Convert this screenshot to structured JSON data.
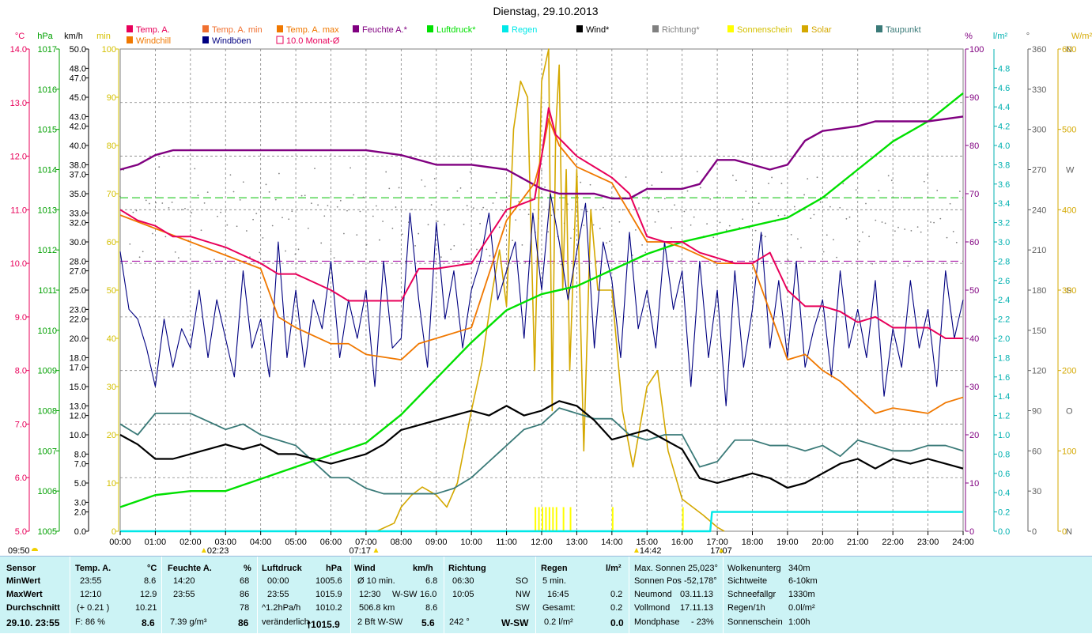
{
  "title": "Dienstag, 29.10.2013",
  "legend": [
    {
      "label": "Temp. A.",
      "color": "#e8005a",
      "marker": "fill"
    },
    {
      "label": "Temp. A. min",
      "color": "#f07030",
      "marker": "fill"
    },
    {
      "label": "Temp. A. max",
      "color": "#f07800",
      "marker": "fill"
    },
    {
      "label": "Feuchte A.*",
      "color": "#800080",
      "marker": "fill"
    },
    {
      "label": "Luftdruck*",
      "color": "#00e000",
      "marker": "fill"
    },
    {
      "label": "Regen",
      "color": "#00e8e8",
      "marker": "fill"
    },
    {
      "label": "Wind*",
      "color": "#000000",
      "marker": "fill"
    },
    {
      "label": "Richtung*",
      "color": "#808080",
      "marker": "fill"
    },
    {
      "label": "Sonnenschein",
      "color": "#ffff00",
      "marker": "fill"
    },
    {
      "label": "Solar",
      "color": "#d4a800",
      "marker": "fill"
    },
    {
      "label": "Taupunkt",
      "color": "#3a7a78",
      "marker": "fill"
    },
    {
      "label": "Windchill",
      "color": "#f07800",
      "marker": "fill"
    },
    {
      "label": "Windböen",
      "color": "#000080",
      "marker": "fill"
    },
    {
      "label": "10.0 Monat-Ø",
      "color": "#e8005a",
      "marker": "outline"
    }
  ],
  "axes": {
    "temp": {
      "unit": "°C",
      "color": "#e8005a",
      "ticks": [
        "5.0",
        "6.0",
        "7.0",
        "8.0",
        "9.0",
        "10.0",
        "11.0",
        "12.0",
        "13.0",
        "14.0"
      ]
    },
    "pressure": {
      "unit": "hPa",
      "color": "#00a000",
      "ticks": [
        "1005",
        "1006",
        "1007",
        "1008",
        "1009",
        "1010",
        "1011",
        "1012",
        "1013",
        "1014",
        "1015",
        "1016",
        "1017"
      ]
    },
    "wind": {
      "unit": "km/h",
      "color": "#000000",
      "ticks": [
        "0.0",
        "2.0",
        "3.0",
        "5.0",
        "7.0",
        "8.0",
        "10.0",
        "12.0",
        "13.0",
        "15.0",
        "17.0",
        "18.0",
        "20.0",
        "22.0",
        "23.0",
        "25.0",
        "27.0",
        "28.0",
        "30.0",
        "32.0",
        "33.0",
        "35.0",
        "37.0",
        "38.0",
        "40.0",
        "42.0",
        "43.0",
        "45.0",
        "47.0",
        "48.0",
        "50.0"
      ]
    },
    "sun_min": {
      "unit": "min",
      "color": "#d4c000",
      "ticks": [
        "0",
        "10",
        "20",
        "30",
        "40",
        "50",
        "60",
        "70",
        "80",
        "90",
        "100"
      ]
    },
    "humidity": {
      "unit": "%",
      "color": "#800080",
      "ticks": [
        "0",
        "10",
        "20",
        "30",
        "40",
        "50",
        "60",
        "70",
        "80",
        "90",
        "100"
      ]
    },
    "rain": {
      "unit": "l/m²",
      "color": "#00b0b0",
      "ticks": [
        "0.0",
        "0.2",
        "0.4",
        "0.6",
        "0.8",
        "1.0",
        "1.2",
        "1.4",
        "1.6",
        "1.8",
        "2.0",
        "2.2",
        "2.4",
        "2.6",
        "2.8",
        "3.0",
        "3.2",
        "3.4",
        "3.6",
        "3.8",
        "4.0",
        "4.2",
        "4.4",
        "4.6",
        "4.8"
      ]
    },
    "direction": {
      "unit": "°",
      "color": "#606060",
      "ticks": [
        "0",
        "30",
        "60",
        "90",
        "120",
        "150",
        "180",
        "210",
        "240",
        "270",
        "300",
        "330",
        "360"
      ],
      "compass": {
        "0": "N",
        "90": "O",
        "180": "S",
        "270": "W",
        "360": "N"
      }
    },
    "solar": {
      "unit": "W/m²",
      "color": "#d4a800",
      "ticks": [
        "0",
        "100",
        "200",
        "300",
        "400",
        "500",
        "600"
      ]
    },
    "time": [
      "00:00",
      "01:00",
      "02:00",
      "03:00",
      "04:00",
      "05:00",
      "06:00",
      "07:00",
      "08:00",
      "09:00",
      "10:00",
      "11:00",
      "12:00",
      "13:00",
      "14:00",
      "15:00",
      "16:00",
      "17:00",
      "18:00",
      "19:00",
      "20:00",
      "21:00",
      "22:00",
      "23:00",
      "24:00"
    ]
  },
  "events": {
    "moon_set": "09:50",
    "moon_rise": "02:23",
    "sunrise": "07:17",
    "sunset_marker": "14:42",
    "sunset": "17:07"
  },
  "chart_data": {
    "type": "line",
    "title": "Dienstag, 29.10.2013",
    "x_unit": "hours",
    "reference_lines": [
      {
        "name": "Luftdruck ref",
        "value": 1013.3,
        "unit": "hPa"
      },
      {
        "name": "Feuchte ref",
        "value": 56,
        "unit": "%"
      }
    ],
    "series": [
      {
        "name": "Temp. A.",
        "unit": "°C",
        "x": [
          0,
          0.5,
          1,
          1.5,
          2,
          3,
          4,
          4.5,
          5,
          6,
          6.5,
          7,
          7.5,
          8,
          8.5,
          9,
          10,
          11,
          11.8,
          12,
          12.2,
          12.4,
          12.7,
          13,
          13.5,
          14,
          14.5,
          15,
          15.5,
          16,
          16.5,
          17,
          17.5,
          18,
          18.5,
          19,
          19.5,
          20,
          20.5,
          21,
          21.5,
          22,
          23,
          23.5,
          24
        ],
        "values": [
          11.0,
          10.8,
          10.7,
          10.5,
          10.5,
          10.3,
          10.0,
          9.8,
          9.8,
          9.5,
          9.3,
          9.3,
          9.3,
          9.3,
          9.9,
          9.9,
          10.0,
          11.0,
          11.2,
          12.0,
          12.9,
          12.4,
          12.2,
          12.0,
          11.8,
          11.6,
          11.3,
          10.5,
          10.4,
          10.4,
          10.2,
          10.1,
          10.0,
          10.0,
          10.2,
          9.5,
          9.2,
          9.2,
          9.1,
          8.9,
          9.0,
          8.8,
          8.8,
          8.6,
          8.6
        ]
      },
      {
        "name": "Temp. A. min",
        "unit": "°C",
        "x": [
          0,
          2,
          4,
          4.5,
          5,
          6,
          6.5,
          7,
          8,
          8.5,
          9,
          10,
          11,
          11.8,
          12,
          12.2,
          12.5,
          13,
          14,
          15,
          15.5,
          16,
          17,
          18,
          19,
          19.5,
          20,
          20.5,
          21,
          21.5,
          22,
          23,
          23.5,
          24
        ],
        "values": [
          10.9,
          10.4,
          9.9,
          9.0,
          8.8,
          8.5,
          8.5,
          8.3,
          8.2,
          8.5,
          8.6,
          8.8,
          10.8,
          11.5,
          12.0,
          12.7,
          12.2,
          11.8,
          11.5,
          10.4,
          10.4,
          10.3,
          10.0,
          10.0,
          8.2,
          8.3,
          8.0,
          7.8,
          7.5,
          7.2,
          7.3,
          7.2,
          7.4,
          7.5
        ]
      },
      {
        "name": "Feuchte A.*",
        "unit": "%",
        "x": [
          0,
          0.5,
          1,
          1.5,
          2,
          3,
          4,
          5,
          6,
          7,
          8,
          9,
          10,
          11,
          12,
          12.5,
          13,
          13.5,
          14,
          14.5,
          15,
          16,
          16.5,
          17,
          17.5,
          18,
          18.5,
          19,
          19.5,
          20,
          21,
          21.5,
          22,
          23,
          24
        ],
        "values": [
          75,
          76,
          78,
          79,
          79,
          79,
          79,
          79,
          79,
          79,
          78,
          76,
          76,
          75,
          71,
          70,
          70,
          70,
          69,
          69,
          71,
          71,
          72,
          77,
          77,
          76,
          75,
          76,
          81,
          83,
          84,
          85,
          85,
          85,
          86
        ]
      },
      {
        "name": "Luftdruck*",
        "unit": "hPa",
        "x": [
          0,
          1,
          2,
          3,
          4,
          5,
          6,
          7,
          8,
          9,
          10,
          11,
          12,
          13,
          14,
          15,
          16,
          17,
          18,
          19,
          20,
          21,
          22,
          23,
          24
        ],
        "values": [
          1005.6,
          1005.9,
          1006.0,
          1006.0,
          1006.3,
          1006.6,
          1006.9,
          1007.2,
          1007.9,
          1008.8,
          1009.7,
          1010.5,
          1010.9,
          1011.1,
          1011.5,
          1011.9,
          1012.2,
          1012.4,
          1012.6,
          1012.8,
          1013.3,
          1014.0,
          1014.7,
          1015.2,
          1015.9
        ]
      },
      {
        "name": "Wind*",
        "unit": "km/h",
        "x": [
          0,
          0.5,
          1,
          1.5,
          2,
          2.5,
          3,
          3.5,
          4,
          4.5,
          5,
          5.5,
          6,
          6.5,
          7,
          7.5,
          8,
          8.5,
          9,
          9.5,
          10,
          10.5,
          11,
          11.5,
          12,
          12.5,
          13,
          13.5,
          14,
          14.5,
          15,
          15.5,
          16,
          16.5,
          17,
          17.5,
          18,
          18.5,
          19,
          19.5,
          20,
          20.5,
          21,
          21.5,
          22,
          22.5,
          23,
          23.5,
          24
        ],
        "values": [
          10.0,
          9.0,
          7.5,
          7.5,
          8.0,
          8.5,
          9.0,
          8.5,
          9.0,
          8.0,
          8.0,
          7.5,
          7.0,
          7.5,
          8.0,
          9.0,
          10.5,
          11.0,
          11.5,
          12.0,
          12.5,
          12.0,
          13.0,
          12.0,
          12.5,
          13.5,
          13.0,
          11.5,
          9.5,
          10.0,
          10.5,
          9.5,
          8.5,
          5.5,
          5.0,
          5.5,
          6.0,
          5.5,
          4.5,
          5.0,
          6.0,
          7.0,
          7.5,
          6.5,
          7.5,
          7.0,
          7.5,
          7.0,
          6.5
        ]
      },
      {
        "name": "Windböen",
        "unit": "km/h",
        "x": [
          0,
          0.25,
          0.5,
          0.75,
          1,
          1.25,
          1.5,
          1.75,
          2,
          2.25,
          2.5,
          2.75,
          3,
          3.25,
          3.5,
          3.75,
          4,
          4.25,
          4.5,
          4.75,
          5,
          5.25,
          5.5,
          5.75,
          6,
          6.25,
          6.5,
          6.75,
          7,
          7.25,
          7.5,
          7.75,
          8,
          8.25,
          8.5,
          8.75,
          9,
          9.25,
          9.5,
          9.75,
          10,
          10.25,
          10.5,
          10.75,
          11,
          11.25,
          11.5,
          11.75,
          12,
          12.25,
          12.5,
          12.75,
          13,
          13.25,
          13.5,
          13.75,
          14,
          14.25,
          14.5,
          14.75,
          15,
          15.25,
          15.5,
          15.75,
          16,
          16.25,
          16.5,
          16.75,
          17,
          17.25,
          17.5,
          17.75,
          18,
          18.25,
          18.5,
          18.75,
          19,
          19.25,
          19.5,
          19.75,
          20,
          20.25,
          20.5,
          20.75,
          21,
          21.25,
          21.5,
          21.75,
          22,
          22.25,
          22.5,
          22.75,
          23,
          23.25,
          23.5,
          23.75,
          24
        ],
        "values": [
          29,
          23,
          22,
          19,
          15,
          22,
          17,
          21,
          19,
          25,
          18,
          24,
          20,
          16,
          27,
          19,
          22,
          16,
          30,
          18,
          25,
          17,
          24,
          21,
          28,
          18,
          24,
          20,
          25,
          15,
          28,
          19,
          20,
          33,
          24,
          17,
          32,
          22,
          27,
          19,
          25,
          28,
          33,
          24,
          27,
          30,
          20,
          33,
          25,
          35,
          30,
          24,
          29,
          34,
          19,
          30,
          26,
          18,
          31,
          21,
          25,
          19,
          30,
          23,
          27,
          15,
          28,
          18,
          25,
          13,
          27,
          17,
          23,
          31,
          19,
          26,
          18,
          28,
          17,
          21,
          24,
          16,
          27,
          19,
          23,
          18,
          26,
          14,
          21,
          17,
          26,
          19,
          23,
          15,
          27,
          20,
          24
        ]
      },
      {
        "name": "Taupunkt",
        "unit": "°C",
        "x": [
          0,
          0.5,
          1,
          1.5,
          2,
          3,
          3.5,
          4,
          4.5,
          5,
          6,
          6.5,
          7,
          7.5,
          8,
          8.5,
          9,
          9.5,
          10,
          10.5,
          11,
          11.5,
          12,
          12.5,
          13,
          13.5,
          14,
          14.5,
          15,
          15.5,
          16,
          16.5,
          17,
          17.5,
          18,
          18.5,
          19,
          19.5,
          20,
          20.5,
          21,
          21.5,
          22,
          22.5,
          23,
          23.5,
          24
        ],
        "values": [
          7.0,
          6.8,
          7.2,
          7.2,
          7.2,
          6.9,
          7.0,
          6.8,
          6.7,
          6.6,
          6.0,
          6.0,
          5.8,
          5.7,
          5.7,
          5.7,
          5.7,
          5.8,
          6.0,
          6.3,
          6.6,
          6.9,
          7.0,
          7.3,
          7.2,
          7.1,
          7.1,
          6.8,
          6.7,
          6.8,
          6.8,
          6.2,
          6.3,
          6.7,
          6.7,
          6.6,
          6.6,
          6.5,
          6.6,
          6.4,
          6.7,
          6.6,
          6.5,
          6.5,
          6.6,
          6.6,
          6.5
        ]
      },
      {
        "name": "Solar",
        "unit": "W/m²",
        "x": [
          7.3,
          7.8,
          8,
          8.3,
          8.6,
          9,
          9.3,
          9.6,
          10,
          10.3,
          10.6,
          10.8,
          11,
          11.2,
          11.4,
          11.6,
          11.8,
          12,
          12.1,
          12.2,
          12.3,
          12.4,
          12.5,
          12.6,
          12.7,
          12.8,
          13,
          13.2,
          13.4,
          13.6,
          13.8,
          14,
          14.3,
          14.6,
          15,
          15.3,
          15.6,
          16,
          16.3,
          16.6,
          17,
          17.2
        ],
        "values": [
          0,
          10,
          30,
          45,
          55,
          45,
          30,
          60,
          150,
          210,
          300,
          350,
          280,
          500,
          560,
          540,
          200,
          560,
          580,
          600,
          150,
          500,
          580,
          300,
          450,
          200,
          450,
          100,
          400,
          300,
          300,
          300,
          150,
          80,
          180,
          200,
          100,
          40,
          30,
          20,
          5,
          0
        ]
      },
      {
        "name": "Regen",
        "unit": "l/m²",
        "x": [
          0,
          16.8,
          16.85,
          24
        ],
        "values": [
          0.0,
          0.0,
          0.2,
          0.2
        ]
      }
    ]
  },
  "stats": {
    "sensor": {
      "header": "Sensor",
      "rows": [
        "MinWert",
        "MaxWert",
        "Durchschnitt",
        "29.10.  23:55"
      ]
    },
    "temp": {
      "header": "Temp. A.",
      "unit": "°C",
      "min_time": "23:55",
      "min": "8.6",
      "max_time": "12:10",
      "max": "12.9",
      "avg_note": "(+ 0.21 )",
      "avg": "10.21",
      "feel": "F: 86 %",
      "now": "8.6"
    },
    "humidity": {
      "header": "Feuchte A.",
      "unit": "%",
      "min_time": "14:20",
      "min": "68",
      "max_time": "23:55",
      "max": "86",
      "avg": "78",
      "abs": "7.39 g/m³",
      "now": "86"
    },
    "pressure": {
      "header": "Luftdruck",
      "unit": "hPa",
      "min_time": "00:00",
      "min": "1005.6",
      "max_time": "23:55",
      "max": "1015.9",
      "trend": "^1.2hPa/h",
      "avg": "1010.2",
      "forecast": "veränderlich",
      "now": "1015.9"
    },
    "wind": {
      "header": "Wind",
      "unit": "km/h",
      "r1_label": "Ø 10 min.",
      "r1": "6.8",
      "r2_label": "12:30",
      "r2_dir": "W-SW",
      "r2": "16.0",
      "r3_label": "506.8 km",
      "r3": "8.6",
      "r4_label": "2 Bft W-SW",
      "now": "5.6"
    },
    "direction": {
      "header": "Richtung",
      "r1_time": "06:30",
      "r1_dir": "SO",
      "r2_time": "10:05",
      "r2_dir": "NW",
      "r3_dir": "SW",
      "now_deg": "242 °",
      "now_dir": "W-SW"
    },
    "rain": {
      "header": "Regen",
      "unit": "l/m²",
      "r1_label": "5 min.",
      "r2_label": "16:45",
      "r2": "0.2",
      "r3_label": "Gesamt:",
      "r3": "0.2",
      "r4_label": "0.2 l/m²",
      "now": "0.0"
    },
    "astro": {
      "r1": "Max. Sonnen 25,023°",
      "r2": "Sonnen Pos  -52,178°",
      "r3_label": "Neumond",
      "r3": "03.11.13",
      "r4_label": "Vollmond",
      "r4": "17.11.13",
      "r5_label": "Mondphase",
      "r5": "- 23%"
    },
    "misc": {
      "r1_label": "Wolkenunterg",
      "r1": "340m",
      "r2_label": "Sichtweite",
      "r2": "6-10km",
      "r3_label": "Schneefallgr",
      "r3": "1330m",
      "r4_label": "Regen/1h",
      "r4": "0.0l/m²",
      "r5_label": "Sonnenschein",
      "r5": "1:00h"
    }
  }
}
